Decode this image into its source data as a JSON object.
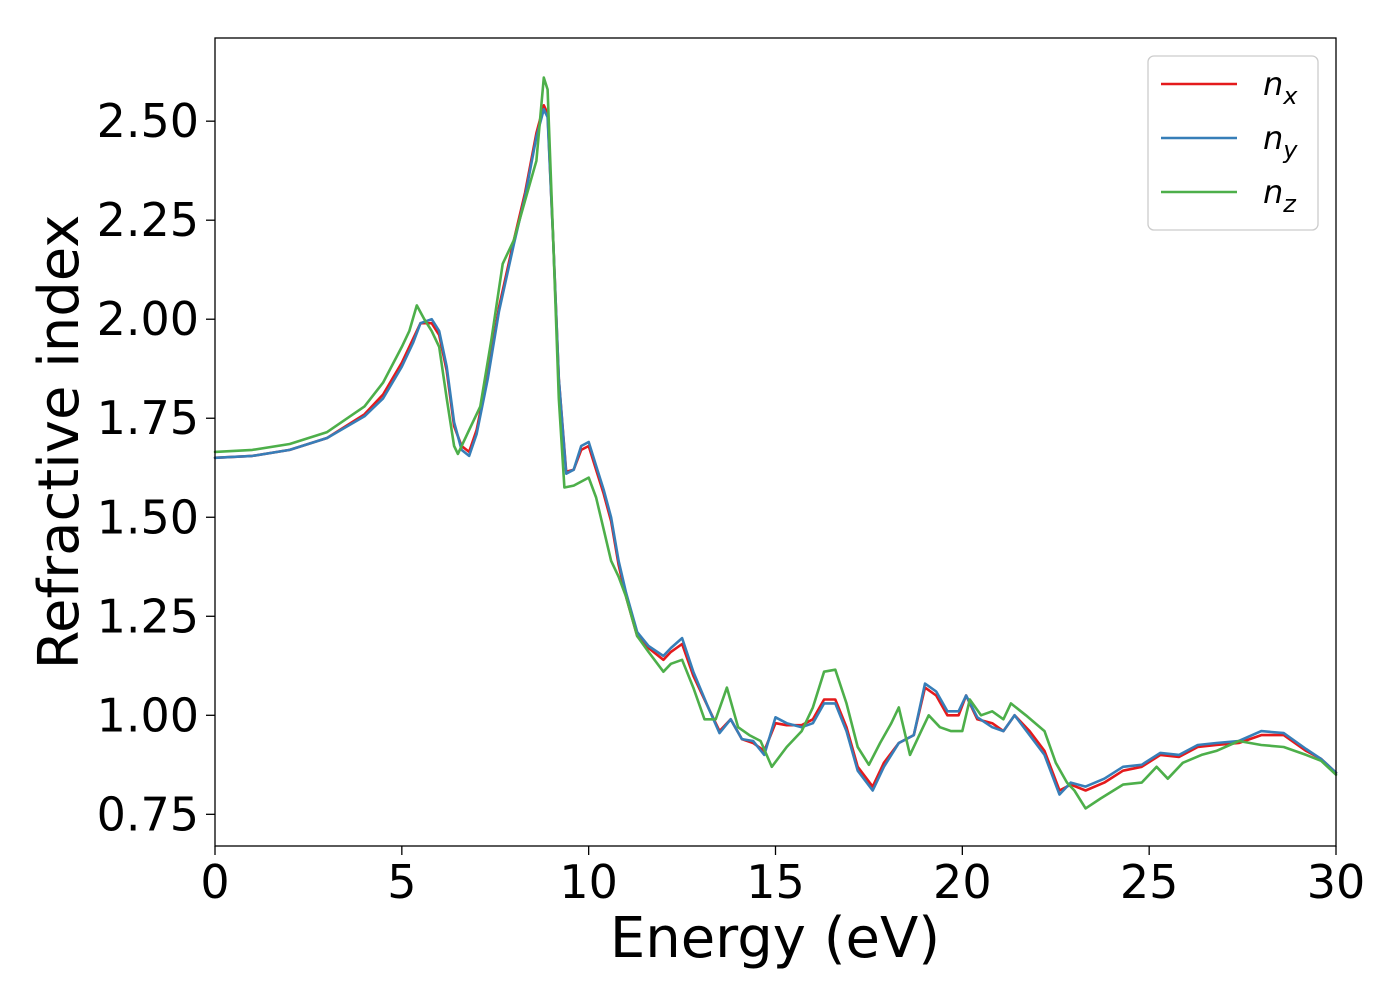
{
  "chart_data": {
    "type": "line",
    "title": "",
    "xlabel": "Energy (eV)",
    "ylabel": "Refractive index",
    "xlim": [
      0,
      30
    ],
    "ylim": [
      0.67,
      2.71
    ],
    "xticks": [
      0,
      5,
      10,
      15,
      20,
      25,
      30
    ],
    "xtick_labels": [
      "0",
      "5",
      "10",
      "15",
      "20",
      "25",
      "30"
    ],
    "yticks": [
      0.75,
      1.0,
      1.25,
      1.5,
      1.75,
      2.0,
      2.25,
      2.5
    ],
    "ytick_labels": [
      "0.75",
      "1.00",
      "1.25",
      "1.50",
      "1.75",
      "2.00",
      "2.25",
      "2.50"
    ],
    "grid": false,
    "legend_position": "top-right",
    "series": [
      {
        "name": "n",
        "subscript": "x",
        "color": "#e41a1c",
        "points": [
          [
            0,
            1.65
          ],
          [
            1,
            1.655
          ],
          [
            2,
            1.67
          ],
          [
            3,
            1.7
          ],
          [
            4,
            1.76
          ],
          [
            4.5,
            1.81
          ],
          [
            5,
            1.89
          ],
          [
            5.3,
            1.95
          ],
          [
            5.5,
            1.99
          ],
          [
            5.8,
            1.99
          ],
          [
            6,
            1.96
          ],
          [
            6.2,
            1.87
          ],
          [
            6.4,
            1.73
          ],
          [
            6.6,
            1.68
          ],
          [
            6.8,
            1.665
          ],
          [
            7,
            1.72
          ],
          [
            7.3,
            1.86
          ],
          [
            7.6,
            2.03
          ],
          [
            8,
            2.2
          ],
          [
            8.3,
            2.32
          ],
          [
            8.6,
            2.47
          ],
          [
            8.8,
            2.54
          ],
          [
            8.9,
            2.52
          ],
          [
            9.05,
            2.2
          ],
          [
            9.2,
            1.85
          ],
          [
            9.4,
            1.615
          ],
          [
            9.6,
            1.62
          ],
          [
            9.8,
            1.67
          ],
          [
            10,
            1.68
          ],
          [
            10.2,
            1.62
          ],
          [
            10.4,
            1.56
          ],
          [
            10.6,
            1.49
          ],
          [
            10.8,
            1.38
          ],
          [
            11,
            1.3
          ],
          [
            11.3,
            1.2
          ],
          [
            11.6,
            1.17
          ],
          [
            12,
            1.14
          ],
          [
            12.2,
            1.16
          ],
          [
            12.5,
            1.18
          ],
          [
            12.8,
            1.1
          ],
          [
            13.2,
            1.02
          ],
          [
            13.5,
            0.96
          ],
          [
            13.8,
            0.99
          ],
          [
            14.1,
            0.94
          ],
          [
            14.4,
            0.93
          ],
          [
            14.7,
            0.91
          ],
          [
            15,
            0.98
          ],
          [
            15.3,
            0.975
          ],
          [
            15.7,
            0.975
          ],
          [
            16,
            0.99
          ],
          [
            16.3,
            1.04
          ],
          [
            16.6,
            1.04
          ],
          [
            16.9,
            0.97
          ],
          [
            17.2,
            0.87
          ],
          [
            17.6,
            0.82
          ],
          [
            17.9,
            0.88
          ],
          [
            18.3,
            0.93
          ],
          [
            18.7,
            0.95
          ],
          [
            19,
            1.07
          ],
          [
            19.3,
            1.05
          ],
          [
            19.6,
            1.0
          ],
          [
            19.9,
            1.0
          ],
          [
            20.1,
            1.05
          ],
          [
            20.4,
            0.99
          ],
          [
            20.8,
            0.98
          ],
          [
            21.1,
            0.96
          ],
          [
            21.4,
            1.0
          ],
          [
            21.8,
            0.96
          ],
          [
            22.2,
            0.91
          ],
          [
            22.6,
            0.81
          ],
          [
            22.9,
            0.825
          ],
          [
            23.3,
            0.81
          ],
          [
            23.8,
            0.83
          ],
          [
            24.3,
            0.86
          ],
          [
            24.8,
            0.87
          ],
          [
            25.3,
            0.9
          ],
          [
            25.8,
            0.895
          ],
          [
            26.3,
            0.92
          ],
          [
            26.8,
            0.925
          ],
          [
            27.4,
            0.93
          ],
          [
            28,
            0.95
          ],
          [
            28.6,
            0.95
          ],
          [
            29.2,
            0.91
          ],
          [
            29.6,
            0.89
          ],
          [
            30,
            0.855
          ]
        ]
      },
      {
        "name": "n",
        "subscript": "y",
        "color": "#377eb8",
        "points": [
          [
            0,
            1.65
          ],
          [
            1,
            1.655
          ],
          [
            2,
            1.67
          ],
          [
            3,
            1.7
          ],
          [
            4,
            1.755
          ],
          [
            4.5,
            1.8
          ],
          [
            5,
            1.88
          ],
          [
            5.3,
            1.94
          ],
          [
            5.5,
            1.99
          ],
          [
            5.8,
            2.0
          ],
          [
            6,
            1.97
          ],
          [
            6.2,
            1.88
          ],
          [
            6.4,
            1.74
          ],
          [
            6.6,
            1.67
          ],
          [
            6.8,
            1.655
          ],
          [
            7,
            1.71
          ],
          [
            7.3,
            1.85
          ],
          [
            7.6,
            2.02
          ],
          [
            8,
            2.19
          ],
          [
            8.3,
            2.31
          ],
          [
            8.6,
            2.46
          ],
          [
            8.8,
            2.53
          ],
          [
            8.9,
            2.51
          ],
          [
            9.05,
            2.2
          ],
          [
            9.2,
            1.85
          ],
          [
            9.4,
            1.61
          ],
          [
            9.6,
            1.62
          ],
          [
            9.8,
            1.68
          ],
          [
            10,
            1.69
          ],
          [
            10.2,
            1.63
          ],
          [
            10.4,
            1.57
          ],
          [
            10.6,
            1.5
          ],
          [
            10.8,
            1.39
          ],
          [
            11,
            1.31
          ],
          [
            11.3,
            1.21
          ],
          [
            11.6,
            1.175
          ],
          [
            12,
            1.15
          ],
          [
            12.2,
            1.17
          ],
          [
            12.5,
            1.195
          ],
          [
            12.8,
            1.11
          ],
          [
            13.2,
            1.02
          ],
          [
            13.5,
            0.955
          ],
          [
            13.8,
            0.99
          ],
          [
            14.1,
            0.94
          ],
          [
            14.4,
            0.935
          ],
          [
            14.7,
            0.9
          ],
          [
            15,
            0.995
          ],
          [
            15.3,
            0.98
          ],
          [
            15.7,
            0.97
          ],
          [
            16,
            0.98
          ],
          [
            16.3,
            1.03
          ],
          [
            16.6,
            1.03
          ],
          [
            16.9,
            0.96
          ],
          [
            17.2,
            0.86
          ],
          [
            17.6,
            0.81
          ],
          [
            17.9,
            0.87
          ],
          [
            18.3,
            0.93
          ],
          [
            18.7,
            0.95
          ],
          [
            19,
            1.08
          ],
          [
            19.3,
            1.06
          ],
          [
            19.6,
            1.01
          ],
          [
            19.9,
            1.01
          ],
          [
            20.1,
            1.05
          ],
          [
            20.4,
            0.995
          ],
          [
            20.8,
            0.97
          ],
          [
            21.1,
            0.96
          ],
          [
            21.4,
            1.0
          ],
          [
            21.8,
            0.95
          ],
          [
            22.2,
            0.9
          ],
          [
            22.6,
            0.8
          ],
          [
            22.9,
            0.83
          ],
          [
            23.3,
            0.82
          ],
          [
            23.8,
            0.84
          ],
          [
            24.3,
            0.87
          ],
          [
            24.8,
            0.875
          ],
          [
            25.3,
            0.905
          ],
          [
            25.8,
            0.9
          ],
          [
            26.3,
            0.925
          ],
          [
            26.8,
            0.93
          ],
          [
            27.4,
            0.935
          ],
          [
            28,
            0.96
          ],
          [
            28.6,
            0.955
          ],
          [
            29.2,
            0.915
          ],
          [
            29.6,
            0.89
          ],
          [
            30,
            0.855
          ]
        ]
      },
      {
        "name": "n",
        "subscript": "z",
        "color": "#4daf4a",
        "points": [
          [
            0,
            1.665
          ],
          [
            1,
            1.67
          ],
          [
            2,
            1.685
          ],
          [
            3,
            1.715
          ],
          [
            4,
            1.78
          ],
          [
            4.5,
            1.84
          ],
          [
            5,
            1.93
          ],
          [
            5.2,
            1.97
          ],
          [
            5.4,
            2.035
          ],
          [
            5.6,
            2.0
          ],
          [
            5.8,
            1.97
          ],
          [
            6,
            1.93
          ],
          [
            6.2,
            1.8
          ],
          [
            6.4,
            1.68
          ],
          [
            6.5,
            1.66
          ],
          [
            6.8,
            1.72
          ],
          [
            7.1,
            1.78
          ],
          [
            7.4,
            1.95
          ],
          [
            7.7,
            2.14
          ],
          [
            8,
            2.2
          ],
          [
            8.3,
            2.3
          ],
          [
            8.6,
            2.4
          ],
          [
            8.8,
            2.61
          ],
          [
            8.9,
            2.58
          ],
          [
            9.05,
            2.2
          ],
          [
            9.2,
            1.8
          ],
          [
            9.35,
            1.575
          ],
          [
            9.6,
            1.58
          ],
          [
            9.8,
            1.59
          ],
          [
            10,
            1.6
          ],
          [
            10.2,
            1.55
          ],
          [
            10.4,
            1.47
          ],
          [
            10.6,
            1.39
          ],
          [
            10.8,
            1.35
          ],
          [
            11,
            1.3
          ],
          [
            11.3,
            1.2
          ],
          [
            11.6,
            1.16
          ],
          [
            12,
            1.11
          ],
          [
            12.2,
            1.13
          ],
          [
            12.5,
            1.14
          ],
          [
            12.8,
            1.07
          ],
          [
            13.1,
            0.99
          ],
          [
            13.4,
            0.99
          ],
          [
            13.7,
            1.07
          ],
          [
            14,
            0.97
          ],
          [
            14.3,
            0.95
          ],
          [
            14.6,
            0.935
          ],
          [
            14.9,
            0.87
          ],
          [
            15.3,
            0.92
          ],
          [
            15.7,
            0.96
          ],
          [
            16,
            1.02
          ],
          [
            16.3,
            1.11
          ],
          [
            16.6,
            1.115
          ],
          [
            16.9,
            1.03
          ],
          [
            17.2,
            0.92
          ],
          [
            17.5,
            0.875
          ],
          [
            17.8,
            0.93
          ],
          [
            18.1,
            0.98
          ],
          [
            18.3,
            1.02
          ],
          [
            18.6,
            0.9
          ],
          [
            18.9,
            0.96
          ],
          [
            19.1,
            1.0
          ],
          [
            19.4,
            0.97
          ],
          [
            19.7,
            0.96
          ],
          [
            20,
            0.96
          ],
          [
            20.2,
            1.04
          ],
          [
            20.5,
            1.0
          ],
          [
            20.8,
            1.01
          ],
          [
            21.1,
            0.99
          ],
          [
            21.3,
            1.03
          ],
          [
            21.7,
            1.0
          ],
          [
            22.2,
            0.96
          ],
          [
            22.5,
            0.88
          ],
          [
            22.8,
            0.83
          ],
          [
            23,
            0.81
          ],
          [
            23.3,
            0.765
          ],
          [
            23.7,
            0.79
          ],
          [
            24.3,
            0.825
          ],
          [
            24.8,
            0.83
          ],
          [
            25.2,
            0.87
          ],
          [
            25.5,
            0.84
          ],
          [
            25.9,
            0.88
          ],
          [
            26.4,
            0.9
          ],
          [
            26.8,
            0.91
          ],
          [
            27.4,
            0.935
          ],
          [
            28,
            0.925
          ],
          [
            28.6,
            0.92
          ],
          [
            29.2,
            0.9
          ],
          [
            29.6,
            0.885
          ],
          [
            30,
            0.85
          ]
        ]
      }
    ]
  }
}
